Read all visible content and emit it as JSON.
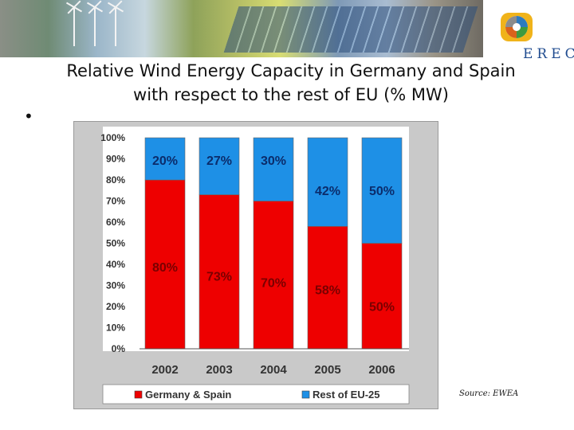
{
  "header": {
    "logo_text": "EREC"
  },
  "slide": {
    "title_line1": "Relative Wind Energy Capacity in Germany and Spain",
    "title_line2": "with respect to the rest of EU (% MW)",
    "bullet": "•",
    "source": "Source: EWEA"
  },
  "colors": {
    "germany_spain": "#ee0000",
    "rest_eu": "#1e90e6"
  },
  "chart_data": {
    "type": "bar",
    "stacked": true,
    "categories": [
      "2002",
      "2003",
      "2004",
      "2005",
      "2006"
    ],
    "series": [
      {
        "name": "Germany & Spain",
        "values": [
          80,
          73,
          70,
          58,
          50
        ],
        "labels": [
          "80%",
          "73%",
          "70%",
          "58%",
          "50%"
        ],
        "color": "#ee0000"
      },
      {
        "name": "Rest of EU-25",
        "values": [
          20,
          27,
          30,
          42,
          50
        ],
        "labels": [
          "20%",
          "27%",
          "30%",
          "42%",
          "50%"
        ],
        "color": "#1e90e6"
      }
    ],
    "yticks": [
      "0%",
      "10%",
      "20%",
      "30%",
      "40%",
      "50%",
      "60%",
      "70%",
      "80%",
      "90%",
      "100%"
    ],
    "ylim": [
      0,
      100
    ],
    "legend_position": "bottom",
    "grid": false
  }
}
